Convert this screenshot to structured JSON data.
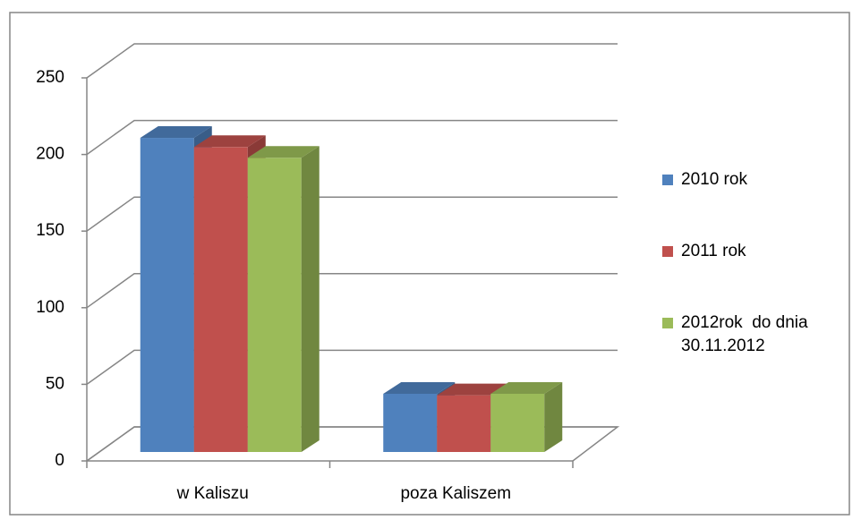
{
  "chart_data": {
    "type": "bar3d",
    "categories": [
      "w Kaliszu",
      "poza Kaliszem"
    ],
    "series": [
      {
        "name": "2010 rok",
        "color": "#4f81bd",
        "values": [
          205,
          38
        ]
      },
      {
        "name": "2011 rok",
        "color": "#c0504d",
        "values": [
          199,
          37
        ]
      },
      {
        "name": "2012rok  do dnia 30.11.2012",
        "color": "#9bbb59",
        "values": [
          192,
          38
        ]
      }
    ],
    "ylim": [
      0,
      250
    ],
    "yticks": [
      0,
      50,
      100,
      150,
      200,
      250
    ],
    "grid": true,
    "legend": "right"
  }
}
